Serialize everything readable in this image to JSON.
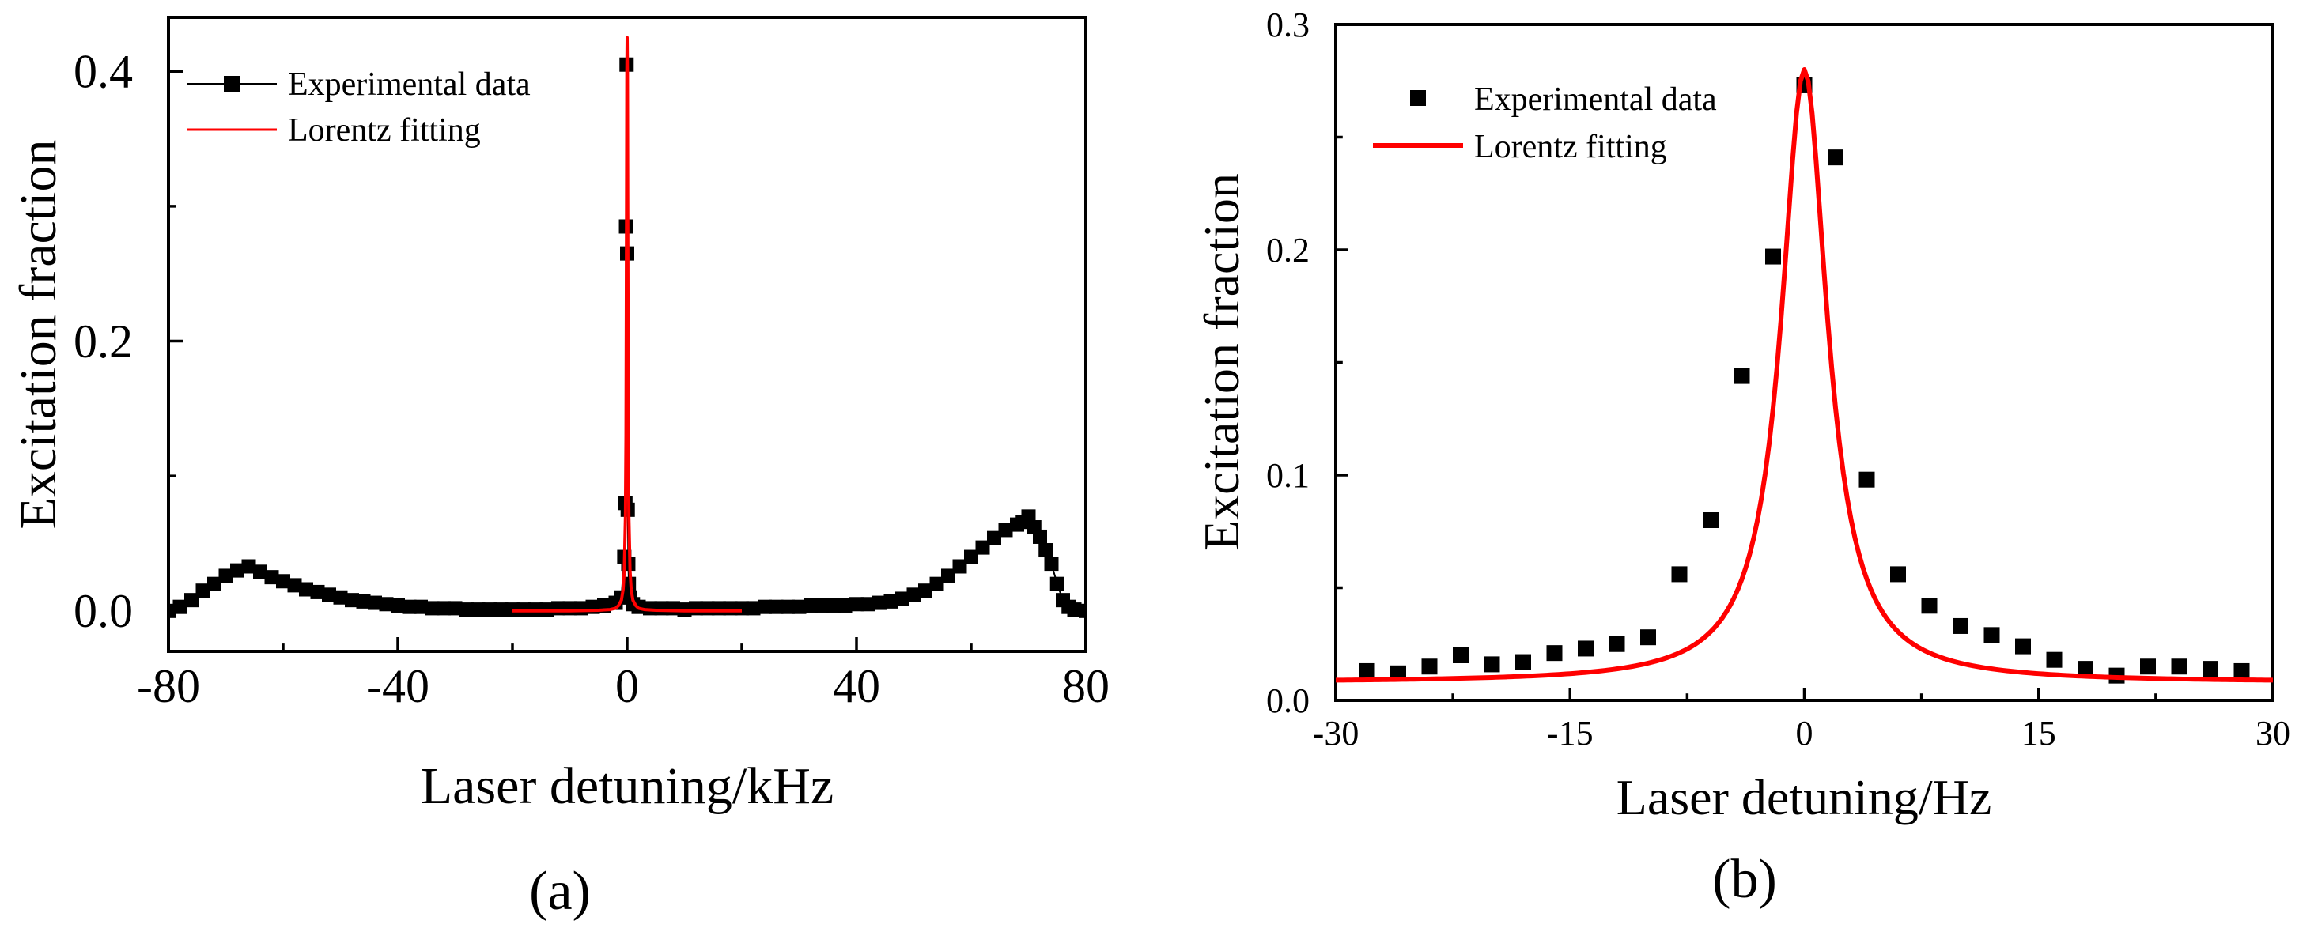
{
  "figure": {
    "panel_a_label": "(a)",
    "panel_b_label": "(b)"
  },
  "colors": {
    "data": "#000000",
    "fit": "#ff0000"
  },
  "chart_data": [
    {
      "type": "scatter",
      "panel": "a",
      "title": "",
      "xlabel": "Laser detuning/kHz",
      "ylabel": "Excitation fraction",
      "xlim": [
        -80,
        80
      ],
      "ylim": [
        -0.03,
        0.44
      ],
      "xticks": [
        -80,
        -40,
        0,
        40,
        80
      ],
      "xtick_labels": [
        "-80",
        "-40",
        "0",
        "40",
        "80"
      ],
      "yticks": [
        0.0,
        0.2,
        0.4
      ],
      "ytick_labels": [
        "0.0",
        "0.2",
        "0.4"
      ],
      "legend_position": "top-left",
      "series": [
        {
          "name": "Experimental data",
          "kind": "markers-with-line",
          "x": [
            -80,
            -78,
            -76,
            -74,
            -72,
            -70,
            -68,
            -66,
            -64,
            -62,
            -60,
            -58,
            -56,
            -54,
            -52,
            -50,
            -48,
            -46,
            -44,
            -42,
            -40,
            -38,
            -36,
            -34,
            -32,
            -30,
            -28,
            -26,
            -24,
            -22,
            -20,
            -18,
            -16,
            -14,
            -12,
            -10,
            -8,
            -6,
            -4,
            -2,
            -1,
            -0.5,
            -0.3,
            -0.2,
            -0.1,
            0,
            0.1,
            0.2,
            0.3,
            0.5,
            1,
            2,
            4,
            6,
            8,
            10,
            12,
            14,
            16,
            18,
            20,
            22,
            24,
            26,
            28,
            30,
            32,
            34,
            36,
            38,
            40,
            42,
            44,
            46,
            48,
            50,
            52,
            54,
            56,
            58,
            60,
            62,
            64,
            66,
            68,
            69,
            70,
            71,
            72,
            73,
            74,
            75,
            76,
            77,
            78,
            80
          ],
          "y": [
            0.0,
            0.003,
            0.008,
            0.015,
            0.02,
            0.026,
            0.03,
            0.033,
            0.029,
            0.025,
            0.022,
            0.019,
            0.016,
            0.014,
            0.012,
            0.01,
            0.008,
            0.007,
            0.006,
            0.005,
            0.004,
            0.003,
            0.003,
            0.002,
            0.002,
            0.002,
            0.001,
            0.001,
            0.001,
            0.001,
            0.001,
            0.001,
            0.001,
            0.001,
            0.002,
            0.002,
            0.002,
            0.003,
            0.004,
            0.006,
            0.01,
            0.04,
            0.08,
            0.285,
            0.405,
            0.265,
            0.075,
            0.035,
            0.02,
            0.01,
            0.005,
            0.003,
            0.002,
            0.002,
            0.002,
            0.001,
            0.002,
            0.002,
            0.002,
            0.002,
            0.002,
            0.002,
            0.003,
            0.003,
            0.003,
            0.003,
            0.004,
            0.004,
            0.004,
            0.004,
            0.005,
            0.005,
            0.006,
            0.007,
            0.009,
            0.012,
            0.015,
            0.02,
            0.026,
            0.033,
            0.04,
            0.047,
            0.054,
            0.06,
            0.064,
            0.066,
            0.07,
            0.062,
            0.055,
            0.045,
            0.035,
            0.02,
            0.008,
            0.003,
            0.001,
            0.0
          ]
        },
        {
          "name": "Lorentz fitting",
          "kind": "line",
          "x": [
            -20,
            -10,
            -5,
            -3,
            -2,
            -1.5,
            -1,
            -0.7,
            -0.5,
            -0.3,
            -0.2,
            -0.1,
            -0.05,
            0,
            0.05,
            0.1,
            0.2,
            0.3,
            0.5,
            0.7,
            1,
            1.5,
            2,
            3,
            5,
            10,
            20
          ],
          "y": [
            0.0,
            0.0,
            0.0005,
            0.001,
            0.002,
            0.004,
            0.008,
            0.016,
            0.03,
            0.07,
            0.13,
            0.3,
            0.4,
            0.425,
            0.4,
            0.3,
            0.13,
            0.07,
            0.03,
            0.016,
            0.008,
            0.004,
            0.002,
            0.001,
            0.0005,
            0.0,
            0.0
          ]
        }
      ]
    },
    {
      "type": "scatter",
      "panel": "b",
      "title": "",
      "xlabel": "Laser detuning/Hz",
      "ylabel": "Excitation fraction",
      "xlim": [
        -30,
        30
      ],
      "ylim": [
        0.0,
        0.3
      ],
      "xticks": [
        -30,
        -15,
        0,
        15,
        30
      ],
      "xtick_labels": [
        "-30",
        "-15",
        "0",
        "15",
        "30"
      ],
      "yticks": [
        0.0,
        0.1,
        0.2,
        0.3
      ],
      "ytick_labels": [
        "0.0",
        "0.1",
        "0.2",
        "0.3"
      ],
      "legend_position": "top-left",
      "series": [
        {
          "name": "Experimental data",
          "kind": "markers",
          "x": [
            -28,
            -26,
            -24,
            -22,
            -20,
            -18,
            -16,
            -14,
            -12,
            -10,
            -8,
            -6,
            -4,
            -2,
            0,
            2,
            4,
            6,
            8,
            10,
            12,
            14,
            16,
            18,
            20,
            22,
            24,
            26,
            28
          ],
          "y": [
            0.013,
            0.012,
            0.015,
            0.02,
            0.016,
            0.017,
            0.021,
            0.023,
            0.025,
            0.028,
            0.056,
            0.08,
            0.144,
            0.197,
            0.273,
            0.241,
            0.098,
            0.056,
            0.042,
            0.033,
            0.029,
            0.024,
            0.018,
            0.014,
            0.011,
            0.015,
            0.015,
            0.014,
            0.013
          ]
        },
        {
          "name": "Lorentz fitting",
          "kind": "line",
          "gamma": 3.6,
          "amplitude": 0.272,
          "offset": 0.008,
          "x0": 0
        }
      ]
    }
  ]
}
